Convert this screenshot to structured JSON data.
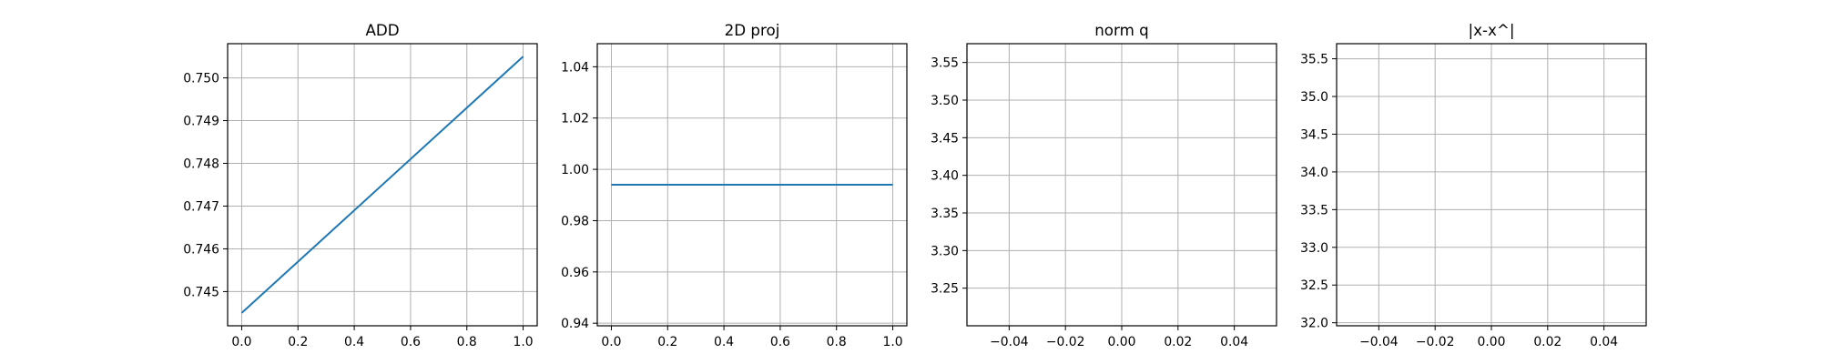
{
  "colors": {
    "line": "#1f77b4",
    "grid": "#b0b0b0",
    "axes": "#000000",
    "background": "#ffffff"
  },
  "chart_data": [
    {
      "type": "line",
      "title": "ADD",
      "xlabel": "",
      "ylabel": "",
      "grid": true,
      "xlim": [
        -0.05,
        1.05
      ],
      "ylim": [
        0.7442,
        0.7508
      ],
      "xticks": [
        0.0,
        0.2,
        0.4,
        0.6,
        0.8,
        1.0
      ],
      "yticks": [
        0.745,
        0.746,
        0.747,
        0.748,
        0.749,
        0.75
      ],
      "xtick_labels": [
        "0.0",
        "0.2",
        "0.4",
        "0.6",
        "0.8",
        "1.0"
      ],
      "ytick_labels": [
        "0.745",
        "0.746",
        "0.747",
        "0.748",
        "0.749",
        "0.750"
      ],
      "series": [
        {
          "x": [
            0.0,
            1.0
          ],
          "y": [
            0.7445,
            0.7505
          ]
        }
      ]
    },
    {
      "type": "line",
      "title": "2D proj",
      "xlabel": "",
      "ylabel": "",
      "grid": true,
      "xlim": [
        -0.05,
        1.05
      ],
      "ylim": [
        0.939,
        1.049
      ],
      "xticks": [
        0.0,
        0.2,
        0.4,
        0.6,
        0.8,
        1.0
      ],
      "yticks": [
        0.94,
        0.96,
        0.98,
        1.0,
        1.02,
        1.04
      ],
      "xtick_labels": [
        "0.0",
        "0.2",
        "0.4",
        "0.6",
        "0.8",
        "1.0"
      ],
      "ytick_labels": [
        "0.94",
        "0.96",
        "0.98",
        "1.00",
        "1.02",
        "1.04"
      ],
      "series": [
        {
          "x": [
            0.0,
            1.0
          ],
          "y": [
            0.994,
            0.994
          ]
        }
      ]
    },
    {
      "type": "line",
      "title": "norm q",
      "xlabel": "",
      "ylabel": "",
      "grid": true,
      "xlim": [
        -0.055,
        0.055
      ],
      "ylim": [
        3.2,
        3.575
      ],
      "xticks": [
        -0.04,
        -0.02,
        0.0,
        0.02,
        0.04
      ],
      "yticks": [
        3.25,
        3.3,
        3.35,
        3.4,
        3.45,
        3.5,
        3.55
      ],
      "xtick_labels": [
        "−0.04",
        "−0.02",
        "0.00",
        "0.02",
        "0.04"
      ],
      "ytick_labels": [
        "3.25",
        "3.30",
        "3.35",
        "3.40",
        "3.45",
        "3.50",
        "3.55"
      ],
      "series": []
    },
    {
      "type": "line",
      "title": "|x-x^|",
      "xlabel": "",
      "ylabel": "",
      "grid": true,
      "xlim": [
        -0.055,
        0.055
      ],
      "ylim": [
        31.96,
        35.7
      ],
      "xticks": [
        -0.04,
        -0.02,
        0.0,
        0.02,
        0.04
      ],
      "yticks": [
        32.0,
        32.5,
        33.0,
        33.5,
        34.0,
        34.5,
        35.0,
        35.5
      ],
      "xtick_labels": [
        "−0.04",
        "−0.02",
        "0.00",
        "0.02",
        "0.04"
      ],
      "ytick_labels": [
        "32.0",
        "32.5",
        "33.0",
        "33.5",
        "34.0",
        "34.5",
        "35.0",
        "35.5"
      ],
      "series": []
    }
  ]
}
